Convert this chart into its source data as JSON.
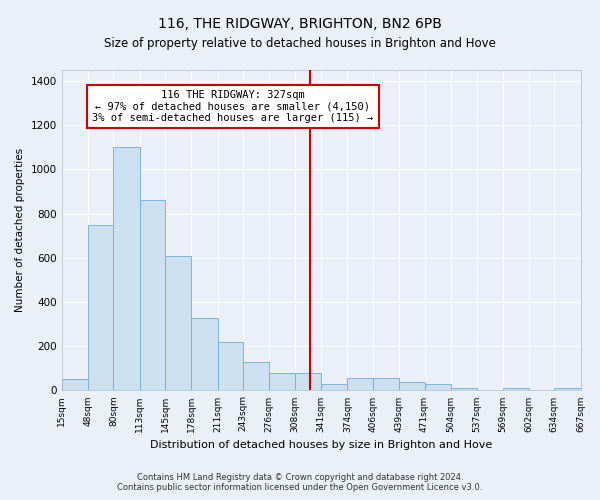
{
  "title": "116, THE RIDGWAY, BRIGHTON, BN2 6PB",
  "subtitle": "Size of property relative to detached houses in Brighton and Hove",
  "xlabel": "Distribution of detached houses by size in Brighton and Hove",
  "ylabel": "Number of detached properties",
  "footer1": "Contains HM Land Registry data © Crown copyright and database right 2024.",
  "footer2": "Contains public sector information licensed under the Open Government Licence v3.0.",
  "annotation_title": "116 THE RIDGWAY: 327sqm",
  "annotation_line1": "← 97% of detached houses are smaller (4,150)",
  "annotation_line2": "3% of semi-detached houses are larger (115) →",
  "property_size": 327,
  "bin_edges": [
    15,
    48,
    80,
    113,
    145,
    178,
    211,
    243,
    276,
    308,
    341,
    374,
    406,
    439,
    471,
    504,
    537,
    569,
    602,
    634,
    667
  ],
  "bar_heights": [
    50,
    750,
    1100,
    860,
    610,
    330,
    220,
    130,
    80,
    80,
    30,
    55,
    55,
    40,
    30,
    10,
    0,
    10,
    0,
    10
  ],
  "bar_color": "#cce0f0",
  "bar_edge_color": "#6baed6",
  "line_color": "#cc0000",
  "annotation_box_color": "#cc0000",
  "ylim": [
    0,
    1450
  ],
  "background_color": "#eaeff8",
  "grid_color": "#ffffff",
  "title_fontsize": 10,
  "subtitle_fontsize": 8.5,
  "ylabel_fontsize": 7.5,
  "xlabel_fontsize": 8,
  "ytick_fontsize": 7.5,
  "xtick_fontsize": 6.5,
  "footer_fontsize": 6,
  "annot_fontsize": 7.5
}
